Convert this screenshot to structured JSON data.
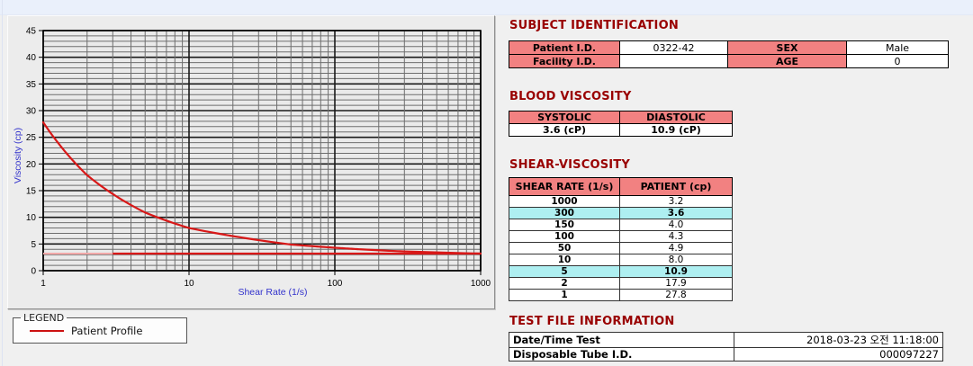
{
  "colors": {
    "header_pink": "#f28181",
    "highlight_cyan": "#aeeff1",
    "section_title_red": "#990000",
    "curve_red": "#d81818",
    "axis_label_blue": "#3333cc",
    "panel_gray": "#ececec",
    "top_strip_blue": "#eaf0fb"
  },
  "chart_data": {
    "type": "line",
    "title": "",
    "xlabel": "Shear Rate (1/s)",
    "ylabel": "Viscosity (cp)",
    "x_scale": "log",
    "xlim": [
      1,
      1000
    ],
    "ylim": [
      0,
      45
    ],
    "x_ticks": [
      1,
      10,
      100,
      1000
    ],
    "y_major_step": 5,
    "y_minor_step": 1,
    "grid": "both",
    "legend_position": "below-left",
    "series": [
      {
        "name": "Patient Profile",
        "color": "#d81818",
        "x": [
          1,
          2,
          5,
          10,
          50,
          100,
          150,
          300,
          1000
        ],
        "y": [
          27.8,
          17.9,
          10.9,
          8.0,
          4.9,
          4.3,
          4.0,
          3.6,
          3.2
        ]
      }
    ],
    "reference_line": {
      "y": 3.2,
      "color": "#d81818",
      "faded_color": "#f2a8a8",
      "fade_until_x": 3
    }
  },
  "legend": {
    "title": "LEGEND",
    "entries": [
      {
        "label": "Patient Profile",
        "color": "#cc1111"
      }
    ]
  },
  "subject_identification": {
    "title": "SUBJECT IDENTIFICATION",
    "fields": [
      {
        "label": "Patient I.D.",
        "value": "0322-42"
      },
      {
        "label": "SEX",
        "value": "Male"
      },
      {
        "label": "Facility I.D.",
        "value": ""
      },
      {
        "label": "AGE",
        "value": "0"
      }
    ]
  },
  "blood_viscosity": {
    "title": "BLOOD VISCOSITY",
    "columns": [
      "SYSTOLIC",
      "DIASTOLIC"
    ],
    "values": [
      "3.6 (cP)",
      "10.9 (cP)"
    ]
  },
  "shear_viscosity": {
    "title": "SHEAR-VISCOSITY",
    "columns": [
      "SHEAR RATE (1/s)",
      "PATIENT (cp)"
    ],
    "rows": [
      {
        "rate": "1000",
        "patient": "3.2",
        "highlight": false
      },
      {
        "rate": "300",
        "patient": "3.6",
        "highlight": true
      },
      {
        "rate": "150",
        "patient": "4.0",
        "highlight": false
      },
      {
        "rate": "100",
        "patient": "4.3",
        "highlight": false
      },
      {
        "rate": "50",
        "patient": "4.9",
        "highlight": false
      },
      {
        "rate": "10",
        "patient": "8.0",
        "highlight": false
      },
      {
        "rate": "5",
        "patient": "10.9",
        "highlight": true
      },
      {
        "rate": "2",
        "patient": "17.9",
        "highlight": false
      },
      {
        "rate": "1",
        "patient": "27.8",
        "highlight": false
      }
    ]
  },
  "test_file_information": {
    "title": "TEST FILE INFORMATION",
    "rows": [
      {
        "label": "Date/Time Test",
        "value": "2018-03-23  오전 11:18:00"
      },
      {
        "label": "Disposable Tube I.D.",
        "value": "000097227"
      }
    ]
  }
}
